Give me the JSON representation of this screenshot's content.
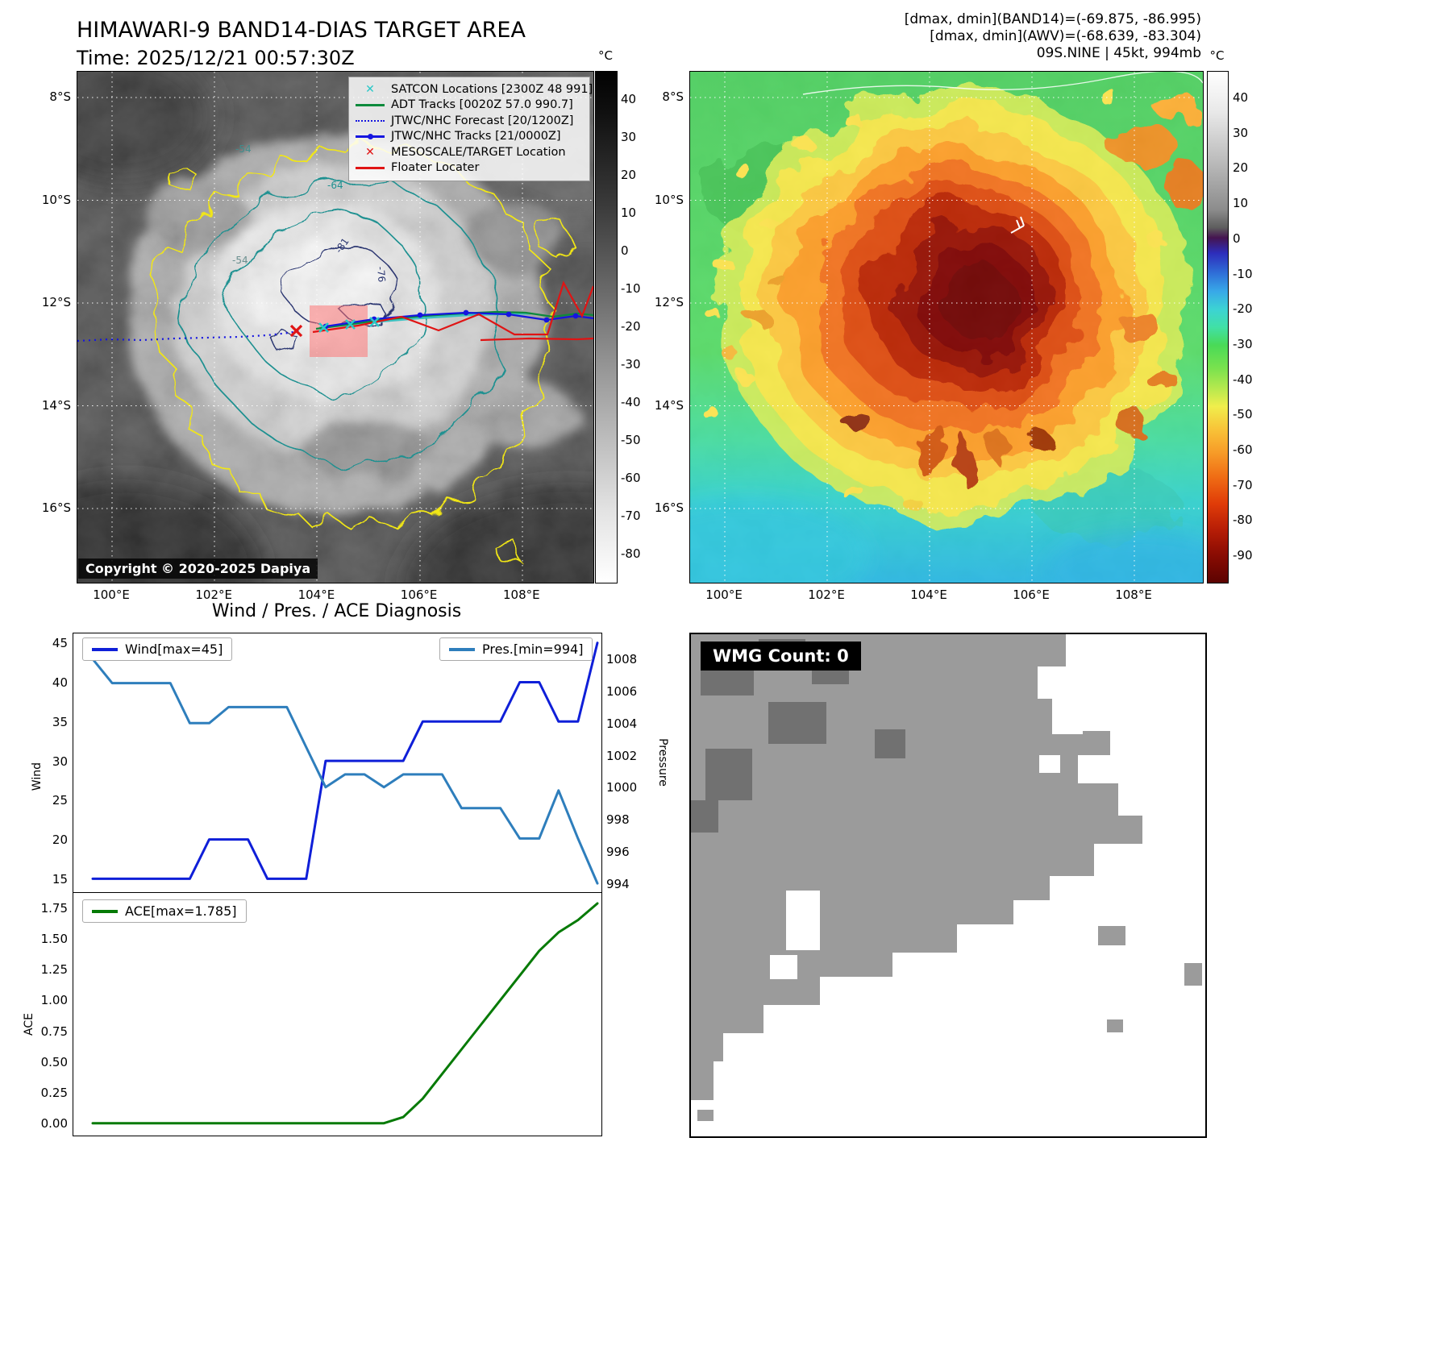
{
  "panel_band14": {
    "title": "HIMAWARI-9 BAND14-DIAS TARGET AREA",
    "time": "Time: 2025/12/21 00:57:30Z",
    "legend": [
      {
        "label": "SATCON Locations [2300Z 48 991]",
        "marker": "x",
        "color": "#29c8c8"
      },
      {
        "label": "ADT Tracks [0020Z 57.0 990.7]",
        "marker": "line",
        "color": "#0d8a3c"
      },
      {
        "label": "JTWC/NHC Forecast [20/1200Z]",
        "marker": "dotted",
        "color": "#1515e0"
      },
      {
        "label": "JTWC/NHC Tracks [21/0000Z]",
        "marker": "line-dot",
        "color": "#1515e0"
      },
      {
        "label": "MESOSCALE/TARGET Location",
        "marker": "x",
        "color": "#e01414"
      },
      {
        "label": "Floater Locater",
        "marker": "line",
        "color": "#e01414"
      }
    ],
    "contour_labels": [
      "-54",
      "-64",
      "-81",
      "-76",
      "-54"
    ],
    "lat_ticks": [
      "8°S",
      "10°S",
      "12°S",
      "14°S",
      "16°S"
    ],
    "lon_ticks": [
      "100°E",
      "102°E",
      "104°E",
      "106°E",
      "108°E"
    ],
    "colorbar_unit": "°C",
    "colorbar_ticks": [
      "40",
      "30",
      "20",
      "10",
      "0",
      "-10",
      "-20",
      "-30",
      "-40",
      "-50",
      "-60",
      "-70",
      "-80"
    ],
    "copyright": "Copyright © 2020-2025 Dapiya"
  },
  "panel_awv": {
    "header_lines": [
      "[dmax, dmin](BAND14)=(-69.875, -86.995)",
      "[dmax, dmin](AWV)=(-68.639, -83.304)",
      "09S.NINE | 45kt, 994mb"
    ],
    "lat_ticks": [
      "8°S",
      "10°S",
      "12°S",
      "14°S",
      "16°S"
    ],
    "lon_ticks": [
      "100°E",
      "102°E",
      "104°E",
      "106°E",
      "108°E"
    ],
    "colorbar_unit": "°C",
    "colorbar_ticks": [
      "40",
      "30",
      "20",
      "10",
      "0",
      "-10",
      "-20",
      "-30",
      "-40",
      "-50",
      "-60",
      "-70",
      "-80",
      "-90"
    ]
  },
  "diagnosis": {
    "title": "Wind / Pres. / ACE Diagnosis",
    "ylabel_wind": "Wind",
    "ylabel_pressure": "Pressure",
    "ylabel_ace": "ACE"
  },
  "wmg": {
    "count_label": "WMG Count: 0"
  },
  "chart_data": [
    {
      "type": "line",
      "panel": "wind_pressure",
      "title": "Wind / Pres. / ACE Diagnosis",
      "x": [
        0,
        1,
        2,
        3,
        4,
        5,
        6,
        7,
        8,
        9,
        10,
        11,
        12,
        13,
        14,
        15,
        16,
        17,
        18,
        19,
        20,
        21,
        22,
        23,
        24,
        25,
        26
      ],
      "series": [
        {
          "name": "Wind[max=45]",
          "color": "#0f1fd8",
          "axis": "left",
          "values": [
            15,
            15,
            15,
            15,
            15,
            15,
            20,
            20,
            20,
            15,
            15,
            15,
            30,
            30,
            30,
            30,
            30,
            35,
            35,
            35,
            35,
            35,
            40,
            40,
            35,
            35,
            45
          ]
        },
        {
          "name": "Pres.[min=994]",
          "color": "#2e7ebc",
          "axis": "right",
          "values": [
            1008,
            1006.5,
            1006.5,
            1006.5,
            1006.5,
            1004,
            1004,
            1005,
            1005,
            1005,
            1005,
            1002.5,
            1000,
            1000.8,
            1000.8,
            1000,
            1000.8,
            1000.8,
            1000.8,
            998.7,
            998.7,
            998.7,
            996.8,
            996.8,
            999.8,
            996.8,
            994
          ]
        }
      ],
      "ylabel_left": "Wind",
      "ylabel_right": "Pressure",
      "yticks_left": [
        45,
        40,
        35,
        30,
        25,
        20,
        15
      ],
      "yticks_right": [
        1008,
        1006,
        1004,
        1002,
        1000,
        998,
        996,
        994
      ],
      "ylim_left": [
        13.2,
        46.2
      ],
      "ylim_right": [
        993.4,
        1009.6
      ],
      "grid": false,
      "legend_position": "inside-top"
    },
    {
      "type": "line",
      "panel": "ace",
      "x": [
        0,
        1,
        2,
        3,
        4,
        5,
        6,
        7,
        8,
        9,
        10,
        11,
        12,
        13,
        14,
        15,
        16,
        17,
        18,
        19,
        20,
        21,
        22,
        23,
        24,
        25,
        26
      ],
      "series": [
        {
          "name": "ACE[max=1.785]",
          "color": "#067a06",
          "values": [
            0,
            0,
            0,
            0,
            0,
            0,
            0,
            0,
            0,
            0,
            0,
            0,
            0,
            0,
            0,
            0,
            0.05,
            0.2,
            0.4,
            0.6,
            0.8,
            1.0,
            1.2,
            1.4,
            1.55,
            1.65,
            1.785
          ]
        }
      ],
      "ylabel": "ACE",
      "yticks": [
        1.75,
        1.5,
        1.25,
        1.0,
        0.75,
        0.5,
        0.25,
        0.0
      ],
      "ytick_labels": [
        "1.75",
        "1.50",
        "1.25",
        "1.00",
        "0.75",
        "0.50",
        "0.25",
        "0.00"
      ],
      "ylim": [
        -0.1,
        1.87
      ],
      "grid": false
    }
  ],
  "colors": {
    "wind_line": "#0f1fd8",
    "pressure_line": "#2e7ebc",
    "ace_line": "#067a06",
    "forecast_track": "#1515e0",
    "adt_track": "#0d8a3c",
    "floater_track": "#e01414",
    "satcon_marker": "#29c8c8",
    "target_box": "#ff6b6b",
    "contour_outer": "#f2e713",
    "contour_mid": "#1f9090",
    "contour_inner": "#2a3570"
  }
}
